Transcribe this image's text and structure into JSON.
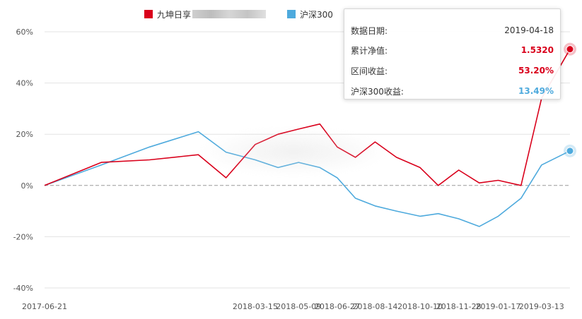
{
  "legend": {
    "series1": "九坤日享",
    "series2": "沪深300"
  },
  "tooltip": {
    "date_label": "数据日期:",
    "date_value": "2019-04-18",
    "nav_label": "累计净值:",
    "nav_value": "1.5320",
    "range_label": "区间收益:",
    "range_value": "53.20%",
    "hs_label": "沪深300收益:",
    "hs_value": "13.49%"
  },
  "colors": {
    "series1": "#d9001b",
    "series2": "#4eaadd",
    "grid": "#e3e3e3",
    "zero": "#999999"
  },
  "chart_data": {
    "type": "line",
    "x": [
      "2017-06-21",
      "2017-09-01",
      "2017-11-01",
      "2018-01-02",
      "2018-02-06",
      "2018-03-15",
      "2018-04-13",
      "2018-05-09",
      "2018-06-05",
      "2018-06-27",
      "2018-07-20",
      "2018-08-14",
      "2018-09-10",
      "2018-10-10",
      "2018-11-02",
      "2018-11-28",
      "2018-12-24",
      "2019-01-17",
      "2019-02-15",
      "2019-03-13",
      "2019-04-18"
    ],
    "xticks": [
      "2017-06-21",
      "2018-03-15",
      "2018-05-09",
      "2018-06-27",
      "2018-08-14",
      "2018-10-10",
      "2018-11-28",
      "2019-01-17",
      "2019-03-13"
    ],
    "yticks": [
      "60%",
      "40%",
      "20%",
      "0%",
      "-20%",
      "-40%"
    ],
    "ylim": [
      -40,
      60
    ],
    "series": [
      {
        "name": "九坤日享",
        "values": [
          0,
          9,
          10,
          12,
          3,
          16,
          20,
          22,
          24,
          15,
          11,
          17,
          11,
          7,
          0,
          6,
          1,
          2,
          0,
          34,
          53.2
        ]
      },
      {
        "name": "沪深300",
        "values": [
          0,
          8,
          15,
          21,
          13,
          10,
          7,
          9,
          7,
          3,
          -5,
          -8,
          -10,
          -12,
          -11,
          -13,
          -16,
          -12,
          -5,
          8,
          13.49
        ]
      }
    ]
  }
}
